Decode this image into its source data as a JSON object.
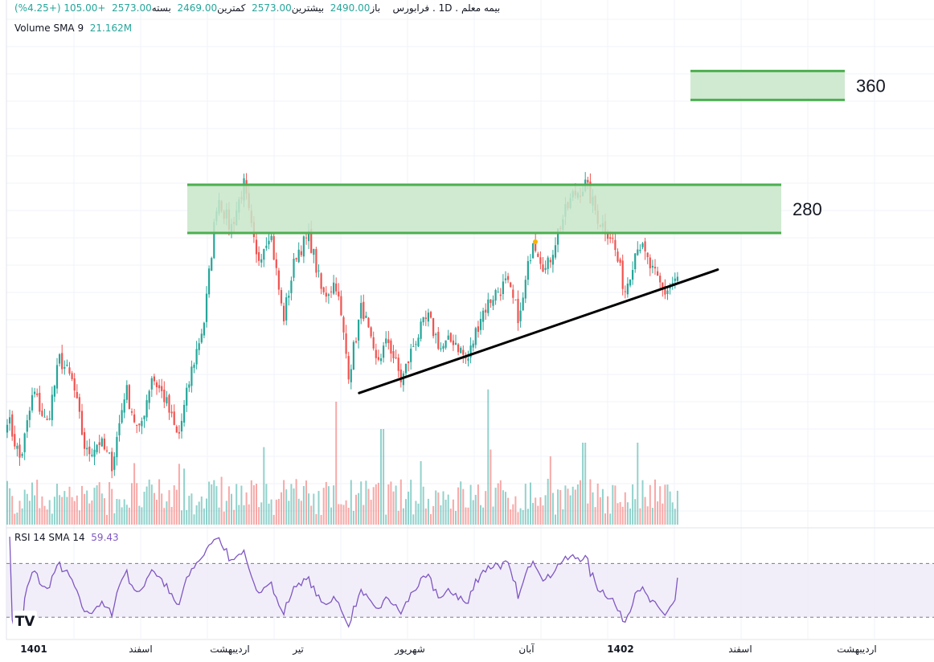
{
  "header": {
    "symbol": "بیمه معلم",
    "timeframe": "1D",
    "exchange": "فرابورس",
    "open_label": "باز",
    "open": "2490.00",
    "high_label": "بیشترین",
    "high": "2573.00",
    "low_label": "کمترین",
    "low": "2469.00",
    "close_label": "بسته",
    "close": "2573.00",
    "change": "+105.00",
    "change_pct": "(+4.25%)"
  },
  "volume_legend": {
    "label": "Volume SMA 9",
    "value": "21.162M"
  },
  "rsi_legend": {
    "label": "RSI 14 SMA 14",
    "value": "59.43"
  },
  "logo_text": "TV",
  "colors": {
    "up": "#26a69a",
    "down": "#ef5350",
    "zone_fill": "#c8e6c9",
    "zone_line": "#4caf50",
    "rsi_line": "#7e57c2",
    "rsi_band": "#ede7f6"
  },
  "chart_data": [
    {
      "type": "candlestick",
      "x_ticks": [
        "1401",
        "اسفند",
        "اردیبهشت",
        "تیر",
        "شهریور",
        "آبان",
        "1402",
        "اسفند",
        "اردیبهشت"
      ],
      "x_ticks_bold": [
        "1401",
        "1402"
      ],
      "ylim": [
        1300,
        3800
      ],
      "last_close": 2573,
      "path": [
        1850,
        1620,
        1980,
        1800,
        2150,
        2020,
        1650,
        1720,
        1600,
        2000,
        1750,
        2060,
        1940,
        1730,
        2080,
        2350,
        3000,
        2820,
        3050,
        2650,
        2820,
        2350,
        2700,
        2780,
        2470,
        2550,
        2070,
        2430,
        2120,
        2240,
        2030,
        2240,
        2360,
        2200,
        2250,
        2130,
        2370,
        2480,
        2540,
        2350,
        2780,
        2600,
        2830,
        2990,
        3050,
        2870,
        2780,
        2500,
        2760,
        2610,
        2490,
        2573
      ],
      "n_candles": 270,
      "zones": [
        {
          "label": "280",
          "y_low": 2800,
          "y_high": 3050
        },
        {
          "label": "360",
          "y_low": 3490,
          "y_high": 3640
        }
      ],
      "trendline": {
        "x_start": 0.525,
        "y_start": 1970,
        "x_end": 1.06,
        "y_end": 2610
      }
    },
    {
      "type": "bar",
      "name": "Volume",
      "note_values_relative": true,
      "spikes": [
        [
          0.19,
          0.45
        ],
        [
          0.32,
          0.35
        ],
        [
          0.49,
          0.9
        ],
        [
          0.56,
          0.7
        ],
        [
          0.72,
          0.55
        ],
        [
          0.81,
          0.5
        ],
        [
          0.86,
          0.6
        ],
        [
          0.94,
          0.6
        ]
      ]
    },
    {
      "type": "line",
      "name": "RSI",
      "ylim": [
        20,
        90
      ],
      "bands": [
        30,
        70
      ],
      "last_value": 59.43
    }
  ]
}
